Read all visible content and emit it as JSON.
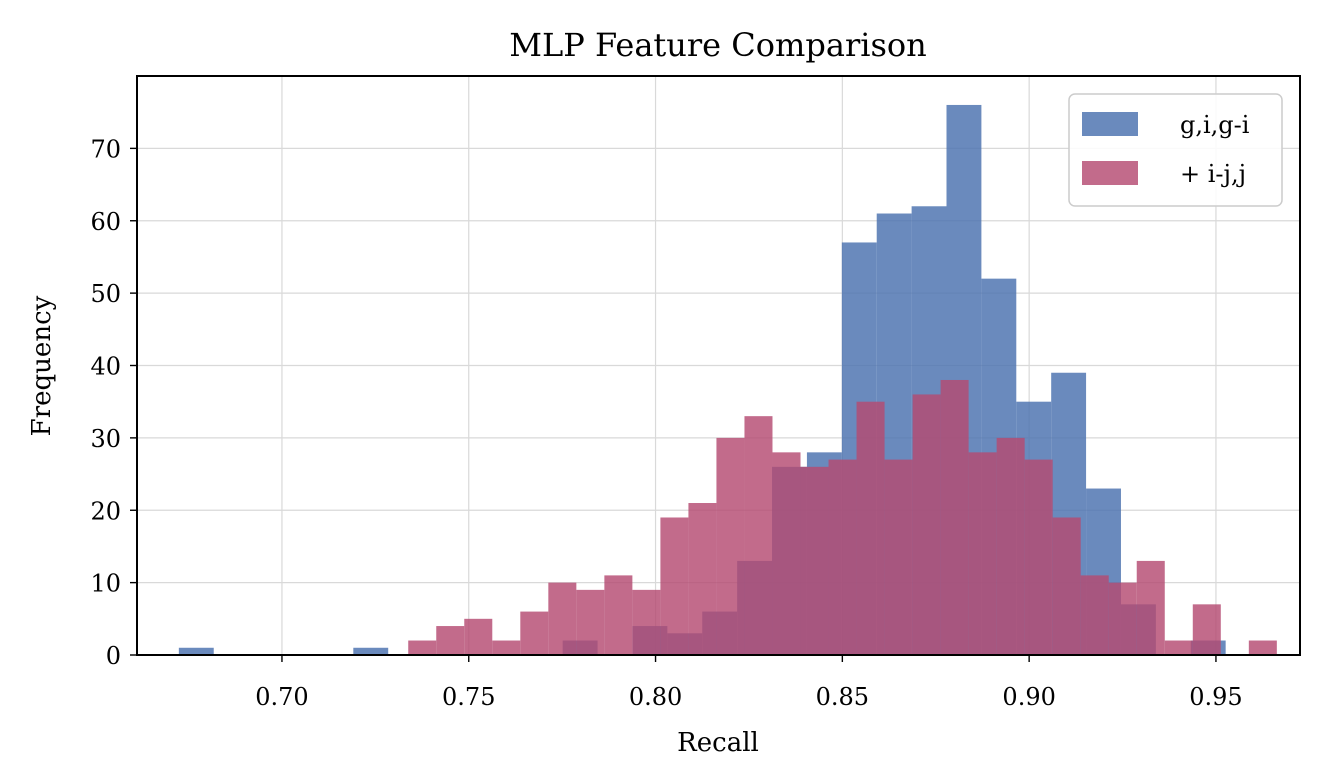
{
  "chart_data": {
    "type": "bar",
    "title": "MLP Feature Comparison",
    "xlabel": "Recall",
    "ylabel": "Frequency",
    "xlim": [
      0.6612,
      0.9725
    ],
    "ylim": [
      0,
      80
    ],
    "xticks": [
      0.7,
      0.75,
      0.8,
      0.85,
      0.9,
      0.95
    ],
    "yticks": [
      0,
      10,
      20,
      30,
      40,
      50,
      60,
      70
    ],
    "xtick_labels": [
      "0.70",
      "0.75",
      "0.80",
      "0.85",
      "0.90",
      "0.95"
    ],
    "ytick_labels": [
      "0",
      "10",
      "20",
      "30",
      "40",
      "50",
      "60",
      "70"
    ],
    "grid": true,
    "legend_position": "top-right",
    "series": [
      {
        "name": "g,i,g-i",
        "color": "#4c72b0",
        "opacity": 0.83,
        "bin_start": 0.6724,
        "bin_width": 0.00934,
        "values": [
          1,
          0,
          0,
          0,
          0,
          1,
          0,
          0,
          0,
          0,
          0,
          2,
          0,
          4,
          3,
          6,
          13,
          26,
          28,
          57,
          61,
          62,
          76,
          52,
          35,
          39,
          23,
          7,
          0,
          2
        ]
      },
      {
        "name": "+ i-j,j",
        "color": "#b44a72",
        "opacity": 0.82,
        "bin_start": 0.7338,
        "bin_width": 0.0075,
        "values": [
          2,
          4,
          5,
          2,
          6,
          10,
          9,
          11,
          9,
          19,
          21,
          30,
          33,
          28,
          26,
          27,
          35,
          27,
          36,
          38,
          28,
          30,
          27,
          19,
          11,
          10,
          13,
          2,
          7,
          0,
          2
        ]
      }
    ]
  }
}
